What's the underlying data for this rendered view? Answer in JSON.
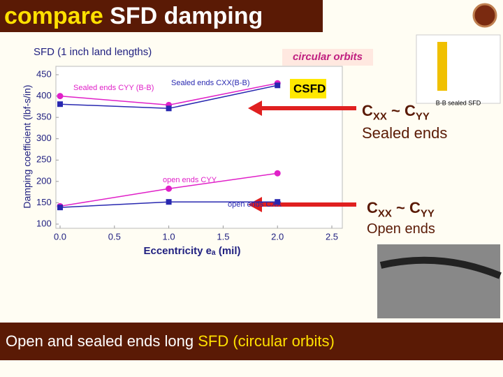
{
  "slide": {
    "title_a": "compare",
    "title_b": "SFD damping",
    "right": [
      {
        "parts": [
          "C",
          "XX",
          " ~ C",
          "YY"
        ],
        "caption": "Sealed ends"
      },
      {
        "parts": [
          "C",
          "XX",
          " ~ C",
          "YY"
        ],
        "caption": "Open ends"
      }
    ],
    "inset_caption": "B-B sealed SFD",
    "footer_a": "Open and sealed ends long ",
    "footer_b": "SFD (circular orbits)"
  },
  "chart_data": {
    "type": "line",
    "title": "SFD (1 inch land lengths)",
    "subtitle": "circular orbits",
    "x_label": "Eccentricity eₐ (mil)",
    "y_label": "Damping coefficient (lbf-s/in)",
    "x": [
      0,
      1,
      2
    ],
    "series": [
      {
        "name": "Sealed ends CYY (B-B)",
        "color": "#e020c8",
        "marker": "circle",
        "values": [
          400,
          379,
          430
        ]
      },
      {
        "name": "Sealed ends CXX(B-B)",
        "color": "#2828b0",
        "marker": "square",
        "values": [
          381,
          371,
          425
        ]
      },
      {
        "name": "open ends CYY",
        "color": "#e020c8",
        "marker": "circle",
        "values": [
          142,
          183,
          219
        ]
      },
      {
        "name": "open ends CXX",
        "color": "#2828b0",
        "marker": "square",
        "values": [
          139,
          152,
          152
        ]
      }
    ],
    "annotation": "CSFD",
    "xlim": [
      0,
      2.5
    ],
    "xticks": [
      {
        "value": 0,
        "label": "0.0"
      },
      {
        "value": 0.5,
        "label": "0.5"
      },
      {
        "value": 1,
        "label": "1.0"
      },
      {
        "value": 1.5,
        "label": "1.5"
      },
      {
        "value": 2,
        "label": "2.0"
      },
      {
        "value": 2.5,
        "label": "2.5"
      }
    ],
    "ylim": [
      100,
      450
    ],
    "yticks": [
      100,
      150,
      200,
      250,
      300,
      350,
      400,
      450
    ]
  }
}
